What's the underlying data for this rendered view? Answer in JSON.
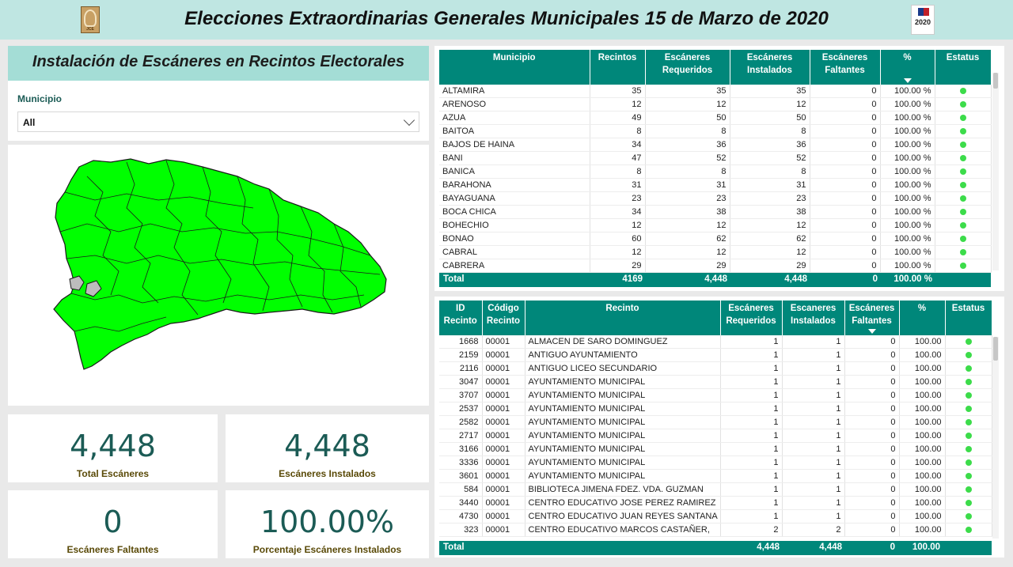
{
  "header": {
    "title": "Elecciones Extraordinarias Generales Municipales 15 de Marzo de 2020",
    "logo_left_text": "JCE",
    "logo_right_text": "2020"
  },
  "left": {
    "subtitle": "Instalación de Escáneres en Recintos Electorales",
    "slicer": {
      "label": "Municipio",
      "value": "All"
    }
  },
  "kpis": {
    "total": {
      "value": "4,448",
      "label": "Total Escáneres"
    },
    "installed": {
      "value": "4,448",
      "label": "Escáneres Instalados"
    },
    "missing": {
      "value": "0",
      "label": "Escáneres Faltantes"
    },
    "percent": {
      "value": "100.00%",
      "label": "Porcentaje Escáneres Instalados"
    }
  },
  "municipios": {
    "headers": [
      "Municipio",
      "Recintos",
      "Escáneres Requeridos",
      "Escáneres Instalados",
      "Escáneres Faltantes",
      "%",
      "Estatus"
    ],
    "rows": [
      [
        "ALTAMIRA",
        "35",
        "35",
        "35",
        "0",
        "100.00 %"
      ],
      [
        "ARENOSO",
        "12",
        "12",
        "12",
        "0",
        "100.00 %"
      ],
      [
        "AZUA",
        "49",
        "50",
        "50",
        "0",
        "100.00 %"
      ],
      [
        "BAITOA",
        "8",
        "8",
        "8",
        "0",
        "100.00 %"
      ],
      [
        "BAJOS DE HAINA",
        "34",
        "36",
        "36",
        "0",
        "100.00 %"
      ],
      [
        "BANI",
        "47",
        "52",
        "52",
        "0",
        "100.00 %"
      ],
      [
        "BANICA",
        "8",
        "8",
        "8",
        "0",
        "100.00 %"
      ],
      [
        "BARAHONA",
        "31",
        "31",
        "31",
        "0",
        "100.00 %"
      ],
      [
        "BAYAGUANA",
        "23",
        "23",
        "23",
        "0",
        "100.00 %"
      ],
      [
        "BOCA CHICA",
        "34",
        "38",
        "38",
        "0",
        "100.00 %"
      ],
      [
        "BOHECHIO",
        "12",
        "12",
        "12",
        "0",
        "100.00 %"
      ],
      [
        "BONAO",
        "60",
        "62",
        "62",
        "0",
        "100.00 %"
      ],
      [
        "CABRAL",
        "12",
        "12",
        "12",
        "0",
        "100.00 %"
      ],
      [
        "CABRERA",
        "29",
        "29",
        "29",
        "0",
        "100.00 %"
      ]
    ],
    "total": {
      "label": "Total",
      "recintos": "4169",
      "requeridos": "4,448",
      "instalados": "4,448",
      "faltantes": "0",
      "pct": "100.00 %"
    }
  },
  "recintos": {
    "headers": [
      "ID Recinto",
      "Código Recinto",
      "Recinto",
      "Escáneres Requeridos",
      "Escaneres Instalados",
      "Escáneres Faltantes",
      "%",
      "Estatus"
    ],
    "rows": [
      [
        "1668",
        "00001",
        "ALMACEN DE SARO DOMINGUEZ",
        "1",
        "1",
        "0",
        "100.00"
      ],
      [
        "2159",
        "00001",
        "ANTIGUO AYUNTAMIENTO",
        "1",
        "1",
        "0",
        "100.00"
      ],
      [
        "2116",
        "00001",
        "ANTIGUO LICEO SECUNDARIO",
        "1",
        "1",
        "0",
        "100.00"
      ],
      [
        "3047",
        "00001",
        "AYUNTAMIENTO MUNICIPAL",
        "1",
        "1",
        "0",
        "100.00"
      ],
      [
        "3707",
        "00001",
        "AYUNTAMIENTO MUNICIPAL",
        "1",
        "1",
        "0",
        "100.00"
      ],
      [
        "2537",
        "00001",
        "AYUNTAMIENTO MUNICIPAL",
        "1",
        "1",
        "0",
        "100.00"
      ],
      [
        "2582",
        "00001",
        "AYUNTAMIENTO MUNICIPAL",
        "1",
        "1",
        "0",
        "100.00"
      ],
      [
        "2717",
        "00001",
        "AYUNTAMIENTO MUNICIPAL",
        "1",
        "1",
        "0",
        "100.00"
      ],
      [
        "3166",
        "00001",
        "AYUNTAMIENTO MUNICIPAL",
        "1",
        "1",
        "0",
        "100.00"
      ],
      [
        "3336",
        "00001",
        "AYUNTAMIENTO MUNICIPAL",
        "1",
        "1",
        "0",
        "100.00"
      ],
      [
        "3601",
        "00001",
        "AYUNTAMIENTO MUNICIPAL",
        "1",
        "1",
        "0",
        "100.00"
      ],
      [
        "584",
        "00001",
        "BIBLIOTECA JIMENA FDEZ. VDA. GUZMAN",
        "1",
        "1",
        "0",
        "100.00"
      ],
      [
        "3440",
        "00001",
        "CENTRO EDUCATIVO JOSE PEREZ RAMIREZ",
        "1",
        "1",
        "0",
        "100.00"
      ],
      [
        "4730",
        "00001",
        "CENTRO EDUCATIVO JUAN REYES SANTANA",
        "1",
        "1",
        "0",
        "100.00"
      ],
      [
        "323",
        "00001",
        "CENTRO EDUCATIVO MARCOS CASTAÑER,",
        "2",
        "2",
        "0",
        "100.00"
      ]
    ],
    "total": {
      "label": "Total",
      "requeridos": "4,448",
      "instalados": "4,448",
      "faltantes": "0",
      "pct": "100.00"
    }
  },
  "colors": {
    "header_teal": "#00877a",
    "title_band": "#a4ddd6",
    "status_ok": "#3cdc4a",
    "map_fill": "#00ff00"
  },
  "icons": [
    "chevron-down-icon",
    "status-dot-icon",
    "sort-desc-icon"
  ]
}
